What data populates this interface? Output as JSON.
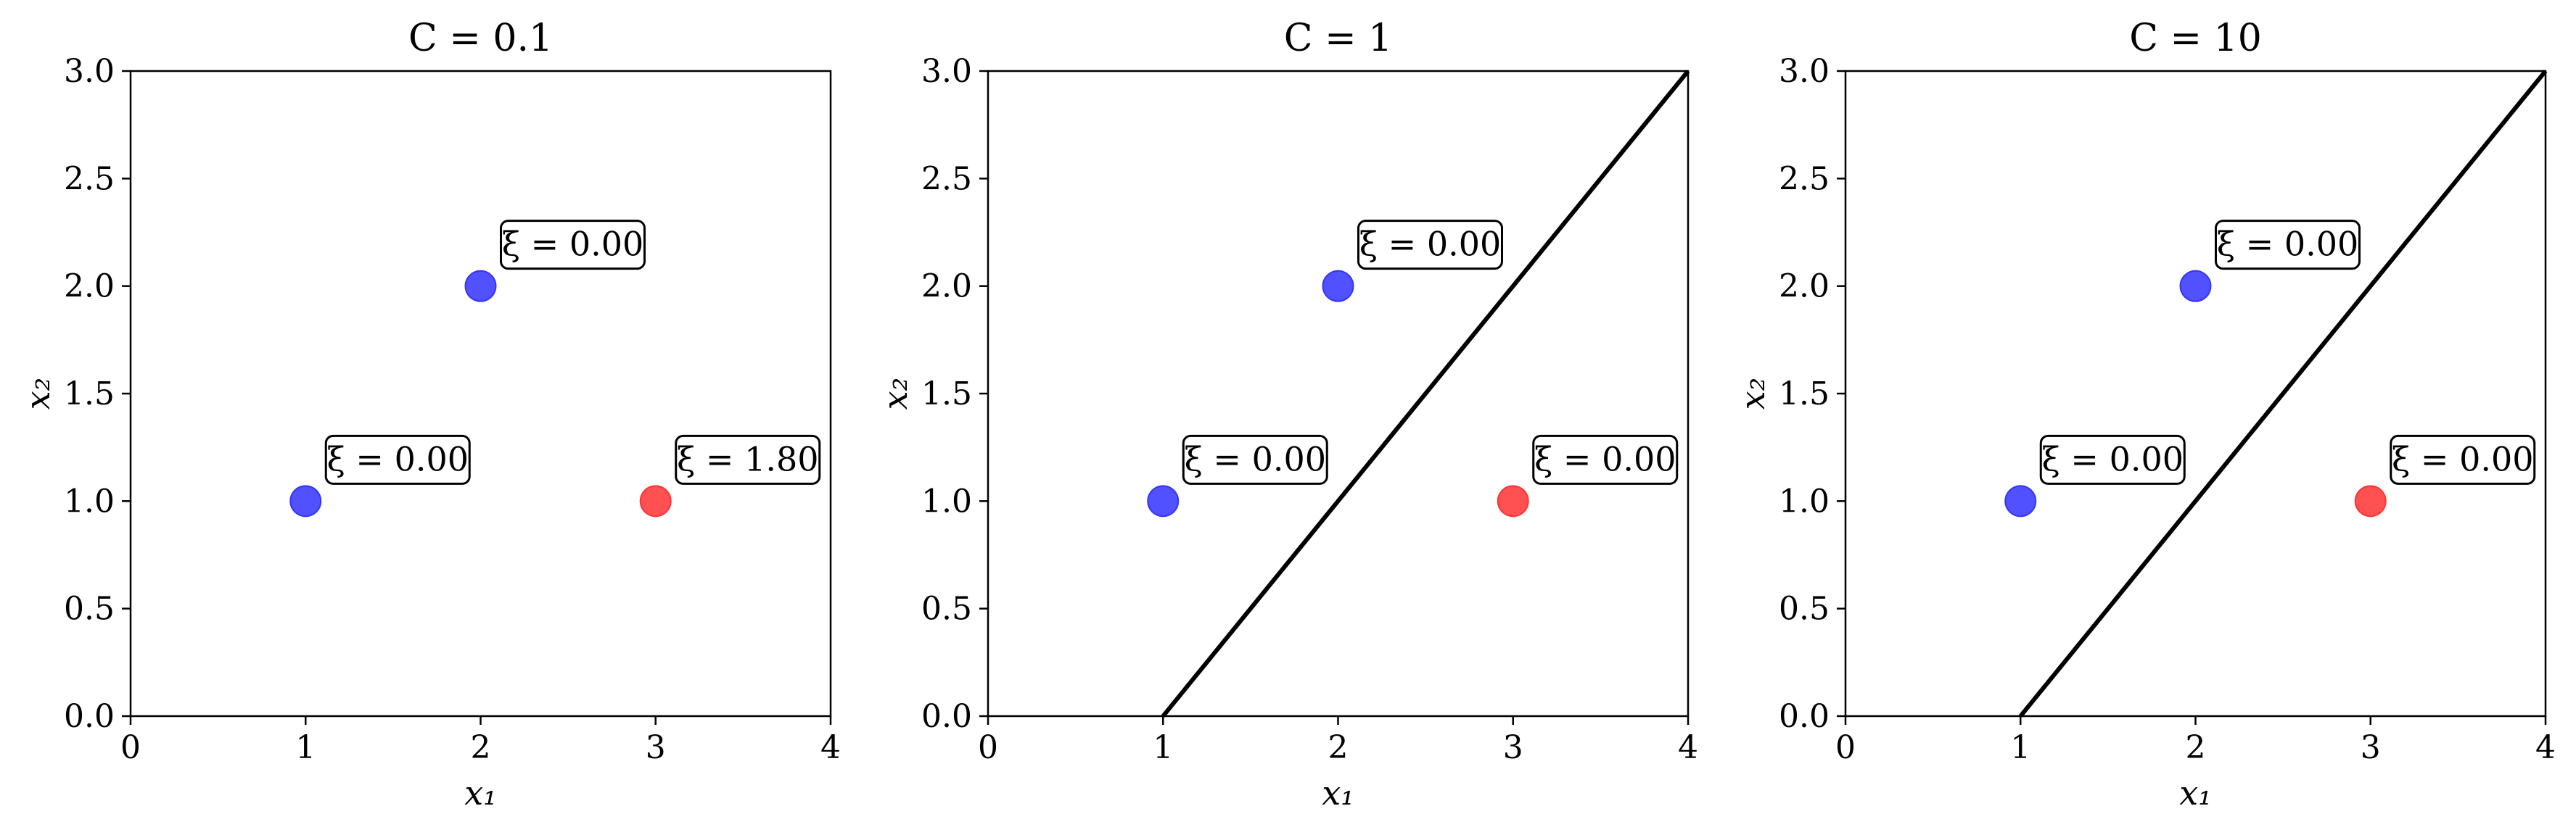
{
  "chart_data": [
    {
      "type": "scatter",
      "title": "C = 0.1",
      "xlabel": "x₁",
      "ylabel": "x₂",
      "xlim": [
        0,
        4
      ],
      "ylim": [
        0,
        3
      ],
      "xticks": [
        "0",
        "1",
        "2",
        "3",
        "4"
      ],
      "yticks": [
        "0.0",
        "0.5",
        "1.0",
        "1.5",
        "2.0",
        "2.5",
        "3.0"
      ],
      "grid": false,
      "points": [
        {
          "x": 1,
          "y": 1,
          "color": "#3333ff",
          "label": "ξ = 0.00"
        },
        {
          "x": 2,
          "y": 2,
          "color": "#3333ff",
          "label": "ξ = 0.00"
        },
        {
          "x": 3,
          "y": 1,
          "color": "#ff3333",
          "label": "ξ = 1.80"
        }
      ],
      "boundary": null
    },
    {
      "type": "scatter",
      "title": "C = 1",
      "xlabel": "x₁",
      "ylabel": "x₂",
      "xlim": [
        0,
        4
      ],
      "ylim": [
        0,
        3
      ],
      "xticks": [
        "0",
        "1",
        "2",
        "3",
        "4"
      ],
      "yticks": [
        "0.0",
        "0.5",
        "1.0",
        "1.5",
        "2.0",
        "2.5",
        "3.0"
      ],
      "grid": false,
      "points": [
        {
          "x": 1,
          "y": 1,
          "color": "#3333ff",
          "label": "ξ = 0.00"
        },
        {
          "x": 2,
          "y": 2,
          "color": "#3333ff",
          "label": "ξ = 0.00"
        },
        {
          "x": 3,
          "y": 1,
          "color": "#ff3333",
          "label": "ξ = 0.00"
        }
      ],
      "boundary": {
        "x": [
          1,
          4
        ],
        "y": [
          0,
          3
        ]
      }
    },
    {
      "type": "scatter",
      "title": "C = 10",
      "xlabel": "x₁",
      "ylabel": "x₂",
      "xlim": [
        0,
        4
      ],
      "ylim": [
        0,
        3
      ],
      "xticks": [
        "0",
        "1",
        "2",
        "3",
        "4"
      ],
      "yticks": [
        "0.0",
        "0.5",
        "1.0",
        "1.5",
        "2.0",
        "2.5",
        "3.0"
      ],
      "grid": false,
      "points": [
        {
          "x": 1,
          "y": 1,
          "color": "#3333ff",
          "label": "ξ = 0.00"
        },
        {
          "x": 2,
          "y": 2,
          "color": "#3333ff",
          "label": "ξ = 0.00"
        },
        {
          "x": 3,
          "y": 1,
          "color": "#ff3333",
          "label": "ξ = 0.00"
        }
      ],
      "boundary": {
        "x": [
          1,
          4
        ],
        "y": [
          0,
          3
        ]
      }
    }
  ]
}
